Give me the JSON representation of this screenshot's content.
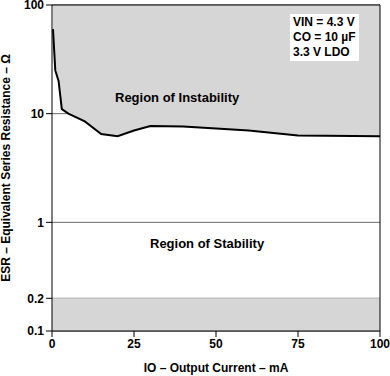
{
  "chart_data": {
    "type": "line",
    "x_label": "IO – Output Current – mA",
    "y_label": "ESR – Equivalent Series Resistance – Ω",
    "annotations": [
      "VIN = 4.3 V",
      "CO = 10 µF",
      "3.3 V LDO",
      "Region of Instability",
      "Region of Stability"
    ],
    "x": [
      0.3,
      1,
      2,
      3,
      5,
      10,
      15,
      20,
      25,
      30,
      40,
      50,
      60,
      75,
      100
    ],
    "series": [
      {
        "name": "ESR",
        "color": "#000000",
        "values": [
          60,
          25,
          20,
          11,
          10,
          8.5,
          6.5,
          6.2,
          7,
          7.7,
          7.6,
          7.3,
          7,
          6.3,
          6.2
        ]
      }
    ],
    "min_esr": 0.2,
    "xlim": [
      0,
      100
    ],
    "ylim": [
      0.1,
      100
    ],
    "xticks": [
      0,
      25,
      50,
      75,
      100
    ],
    "yticks": [
      0.1,
      0.2,
      1,
      10,
      100
    ],
    "log": "y",
    "grid": true
  }
}
